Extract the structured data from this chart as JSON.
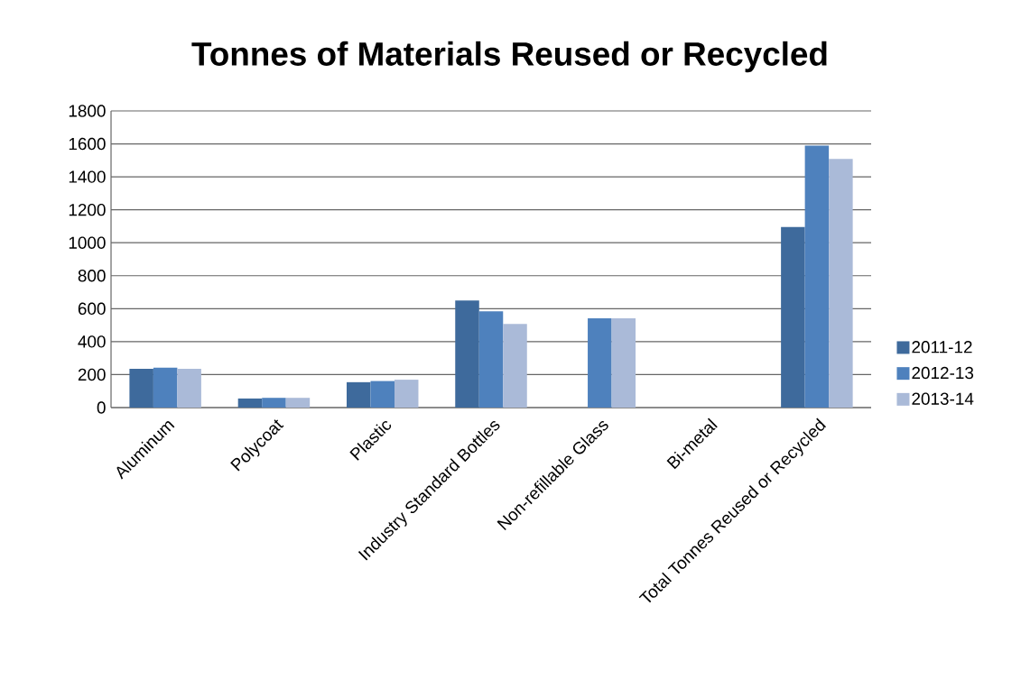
{
  "chart_data": {
    "type": "bar",
    "title": "Tonnes of Materials Reused or Recycled",
    "categories": [
      "Aluminum",
      "Polycoat",
      "Plastic",
      "Industry Standard Bottles",
      "Non-refillable Glass",
      "Bi-metal",
      "Total Tonnes Reused or Recycled"
    ],
    "series": [
      {
        "name": "2011-12",
        "color": "#3e6a9c",
        "values": [
          235,
          55,
          154,
          650,
          null,
          null,
          1095
        ]
      },
      {
        "name": "2012-13",
        "color": "#4e81bd",
        "values": [
          242,
          59,
          161,
          584,
          542,
          null,
          1589
        ]
      },
      {
        "name": "2013-14",
        "color": "#aabad8",
        "values": [
          235,
          59,
          169,
          507,
          542,
          null,
          1508
        ]
      }
    ],
    "ylim": [
      0,
      1800
    ],
    "yticks": [
      0,
      200,
      400,
      600,
      800,
      1000,
      1200,
      1400,
      1600,
      1800
    ],
    "grid": "y",
    "legend": "right"
  }
}
